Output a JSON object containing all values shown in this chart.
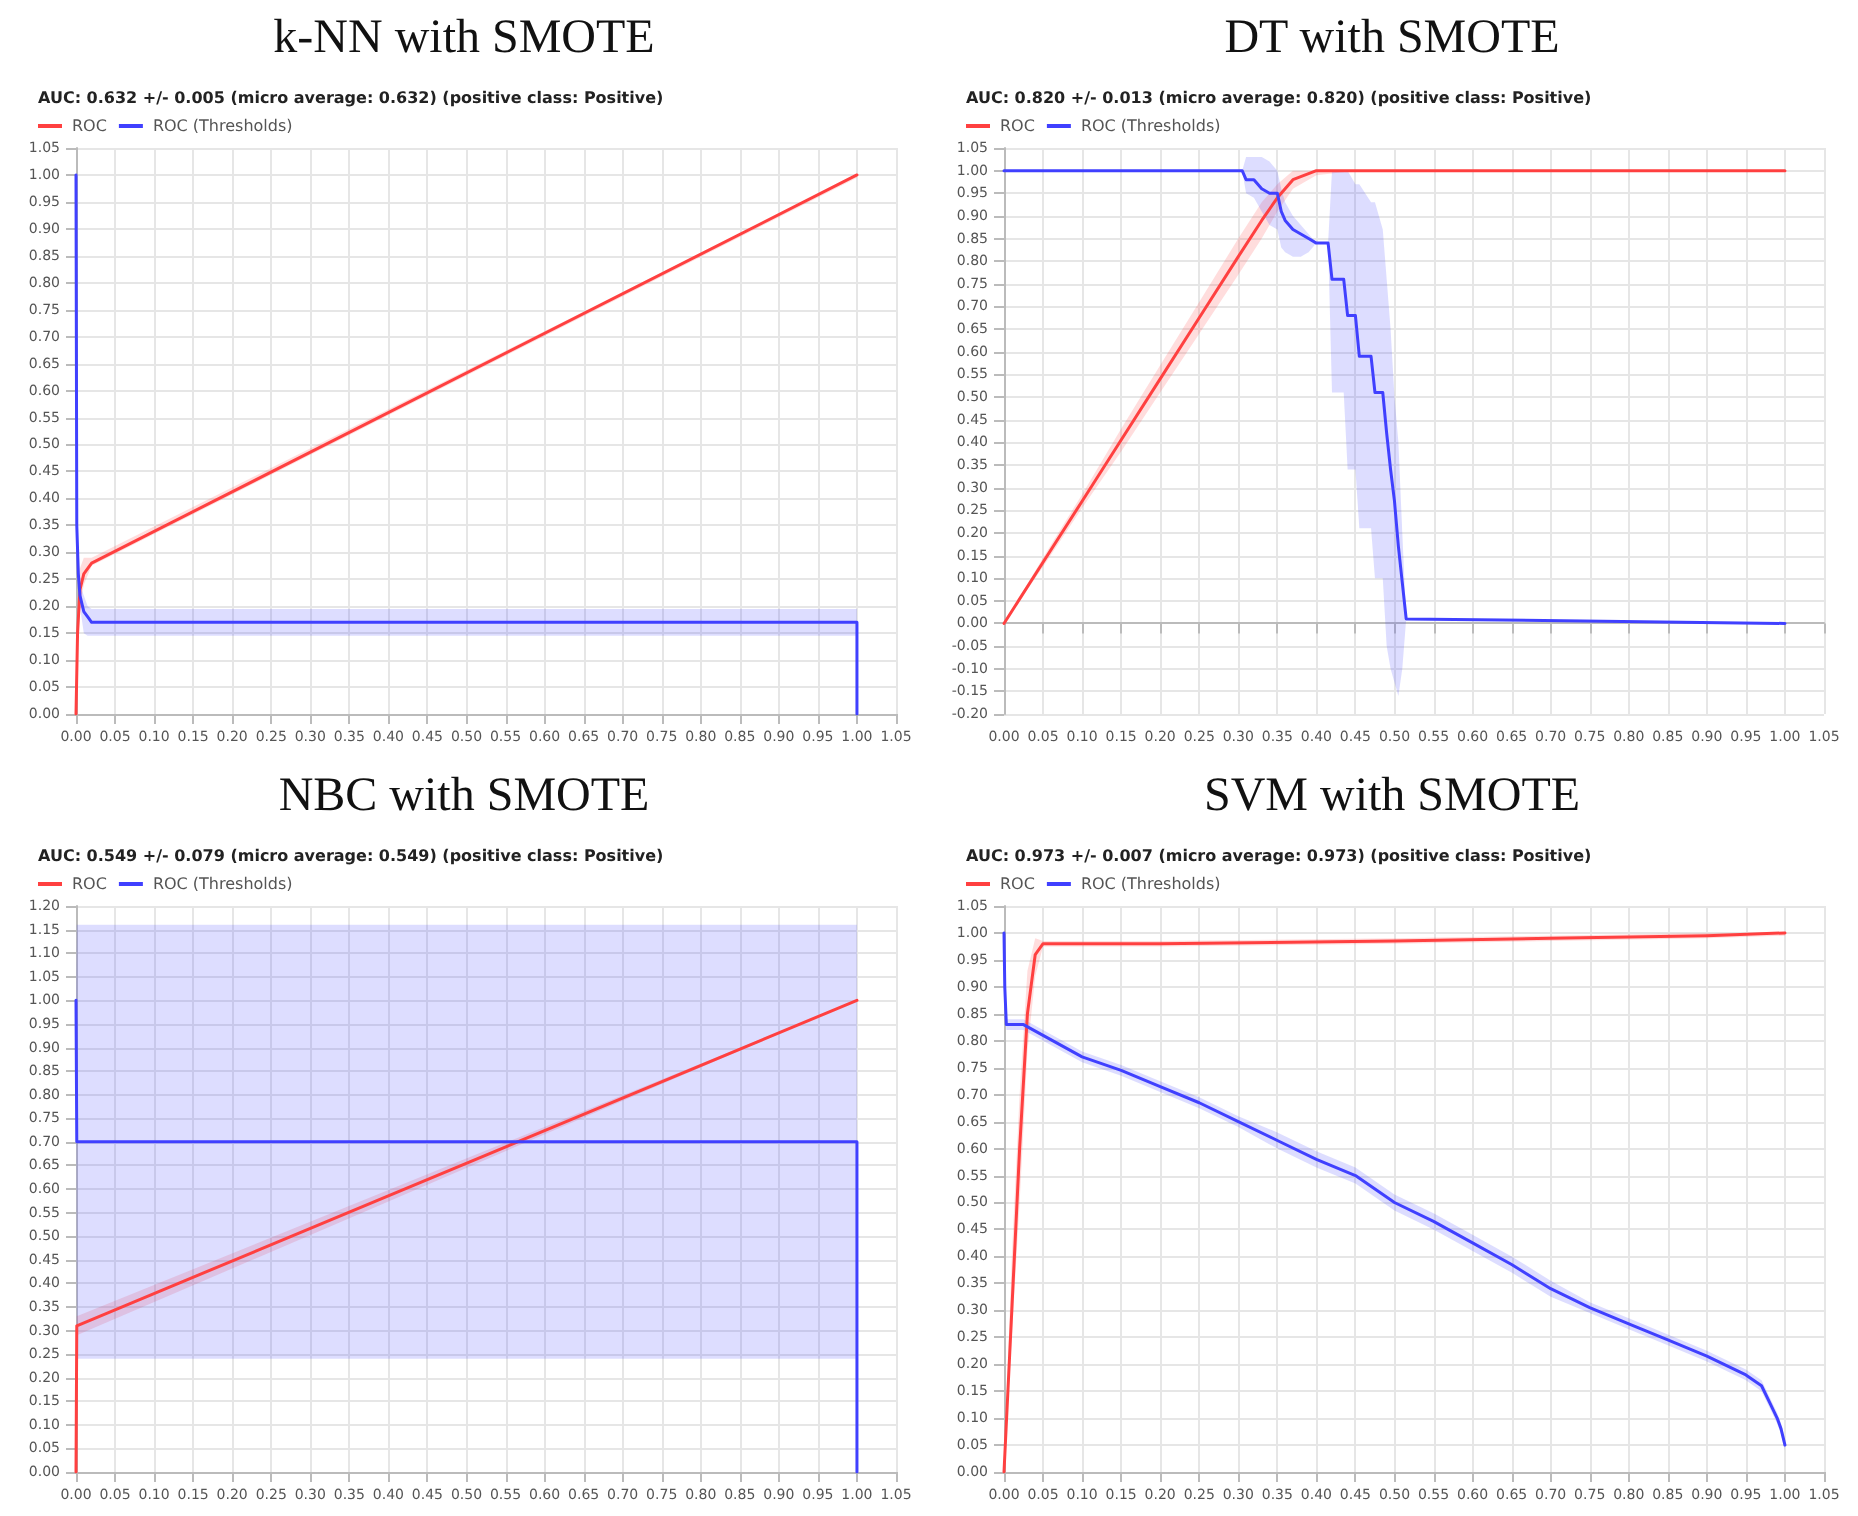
{
  "chart_data": [
    {
      "type": "line",
      "title": "k-NN with SMOTE",
      "subtitle": "AUC: 0.632 +/- 0.005 (micro average: 0.632) (positive class: Positive)",
      "legend": "top left",
      "grid": true,
      "marker": "none",
      "xlim": [
        0,
        1.05
      ],
      "xticks": [
        {
          "value": 0,
          "label": "0.00"
        },
        0.05,
        {
          "value": 0.1,
          "label": "0.10"
        },
        0.15,
        {
          "value": 0.2,
          "label": "0.20"
        },
        0.25,
        {
          "value": 0.3,
          "label": "0.30"
        },
        0.35,
        {
          "value": 0.4,
          "label": "0.40"
        },
        0.45,
        {
          "value": 0.5,
          "label": "0.50"
        },
        0.55,
        {
          "value": 0.6,
          "label": "0.60"
        },
        0.65,
        {
          "value": 0.7,
          "label": "0.70"
        },
        0.75,
        {
          "value": 0.8,
          "label": "0.80"
        },
        0.85,
        {
          "value": 0.9,
          "label": "0.90"
        },
        0.95,
        {
          "value": 1,
          "label": "1.00"
        },
        1.05
      ],
      "ylim": [
        0,
        1.05
      ],
      "yticks": [
        {
          "value": 0,
          "label": "0.00"
        },
        0.05,
        {
          "value": 0.1,
          "label": "0.10"
        },
        0.15,
        {
          "value": 0.2,
          "label": "0.20"
        },
        0.25,
        {
          "value": 0.3,
          "label": "0.30"
        },
        0.35,
        {
          "value": 0.4,
          "label": "0.40"
        },
        0.45,
        {
          "value": 0.5,
          "label": "0.50"
        },
        0.55,
        {
          "value": 0.6,
          "label": "0.60"
        },
        0.65,
        {
          "value": 0.7,
          "label": "0.70"
        },
        0.75,
        {
          "value": 0.8,
          "label": "0.80"
        },
        0.85,
        {
          "value": 0.9,
          "label": "0.90"
        },
        0.95,
        {
          "value": 1,
          "label": "1.00"
        },
        1.05
      ],
      "series": [
        {
          "name": "ROC",
          "color": "#ff4040",
          "x": [
            0,
            0.002,
            0.005,
            0.01,
            0.02,
            1.0
          ],
          "values": [
            0,
            0.15,
            0.23,
            0.26,
            0.28,
            1.0
          ],
          "lower": [
            0,
            0.12,
            0.2,
            0.24,
            0.275,
            0.995
          ],
          "upper": [
            0,
            0.18,
            0.27,
            0.29,
            0.29,
            1.0
          ]
        },
        {
          "name": "ROC (Thresholds)",
          "color": "#4040ff",
          "x": [
            0,
            0.001,
            0.003,
            0.005,
            0.01,
            0.015,
            0.02,
            0.025,
            1.0,
            1.0
          ],
          "values": [
            1.0,
            0.35,
            0.26,
            0.22,
            0.19,
            0.18,
            0.17,
            0.17,
            0.17,
            0
          ],
          "lower": [
            null,
            null,
            null,
            0.2,
            0.15,
            0.145,
            0.145,
            0.145,
            0.145,
            null
          ],
          "upper": [
            null,
            null,
            null,
            0.24,
            0.22,
            0.2,
            0.195,
            0.195,
            0.195,
            null
          ]
        }
      ]
    },
    {
      "type": "line",
      "title": "DT with SMOTE",
      "subtitle": "AUC: 0.820 +/- 0.013 (micro average: 0.820) (positive class: Positive)",
      "legend": "top left",
      "grid": true,
      "marker": "none",
      "xlim": [
        0,
        1.05
      ],
      "xticks": [
        {
          "value": 0,
          "label": "0.00"
        },
        0.05,
        {
          "value": 0.1,
          "label": "0.10"
        },
        0.15,
        {
          "value": 0.2,
          "label": "0.20"
        },
        0.25,
        {
          "value": 0.3,
          "label": "0.30"
        },
        0.35,
        {
          "value": 0.4,
          "label": "0.40"
        },
        0.45,
        {
          "value": 0.5,
          "label": "0.50"
        },
        0.55,
        {
          "value": 0.6,
          "label": "0.60"
        },
        0.65,
        {
          "value": 0.7,
          "label": "0.70"
        },
        0.75,
        {
          "value": 0.8,
          "label": "0.80"
        },
        0.85,
        {
          "value": 0.9,
          "label": "0.90"
        },
        0.95,
        {
          "value": 1,
          "label": "1.00"
        },
        1.05
      ],
      "ylim": [
        -0.2,
        1.05
      ],
      "yticks": [
        {
          "value": -0.2,
          "label": "-0.20"
        },
        -0.15,
        {
          "value": -0.1,
          "label": "-0.10"
        },
        -0.05,
        {
          "value": 0,
          "label": "0.00"
        },
        0.05,
        {
          "value": 0.1,
          "label": "0.10"
        },
        0.15,
        {
          "value": 0.2,
          "label": "0.20"
        },
        0.25,
        {
          "value": 0.3,
          "label": "0.30"
        },
        0.35,
        {
          "value": 0.4,
          "label": "0.40"
        },
        0.45,
        {
          "value": 0.5,
          "label": "0.50"
        },
        0.55,
        {
          "value": 0.6,
          "label": "0.60"
        },
        0.65,
        {
          "value": 0.7,
          "label": "0.70"
        },
        0.75,
        {
          "value": 0.8,
          "label": "0.80"
        },
        0.85,
        {
          "value": 0.9,
          "label": "0.90"
        },
        0.95,
        {
          "value": 1,
          "label": "1.00"
        },
        1.05
      ],
      "series": [
        {
          "name": "ROC",
          "color": "#ff4040",
          "x": [
            0,
            0.05,
            0.1,
            0.15,
            0.2,
            0.25,
            0.3,
            0.33,
            0.35,
            0.37,
            0.4,
            0.45,
            1.0
          ],
          "values": [
            0,
            0.135,
            0.27,
            0.405,
            0.54,
            0.675,
            0.81,
            0.89,
            0.94,
            0.98,
            1.0,
            1.0,
            1.0
          ],
          "lower": [
            0,
            0.125,
            0.255,
            0.38,
            0.51,
            0.64,
            0.77,
            0.85,
            0.91,
            0.96,
            0.99,
            1.0,
            1.0
          ],
          "upper": [
            0,
            0.145,
            0.285,
            0.43,
            0.57,
            0.71,
            0.85,
            0.93,
            0.97,
            1.0,
            1.0,
            1.0,
            1.0
          ]
        },
        {
          "name": "ROC (Thresholds)",
          "color": "#4040ff",
          "x": [
            0,
            0.305,
            0.31,
            0.32,
            0.33,
            0.34,
            0.35,
            0.355,
            0.36,
            0.37,
            0.38,
            0.39,
            0.4,
            0.415,
            0.42,
            0.435,
            0.44,
            0.45,
            0.455,
            0.47,
            0.475,
            0.485,
            0.49,
            0.495,
            0.5,
            0.505,
            0.51,
            0.515,
            1.0
          ],
          "values": [
            1.0,
            1.0,
            0.98,
            0.98,
            0.96,
            0.95,
            0.95,
            0.91,
            0.89,
            0.87,
            0.86,
            0.85,
            0.84,
            0.84,
            0.76,
            0.76,
            0.68,
            0.68,
            0.59,
            0.59,
            0.51,
            0.51,
            0.42,
            0.34,
            0.27,
            0.17,
            0.09,
            0.01,
            0.0
          ],
          "lower": [
            1.0,
            1.0,
            0.95,
            0.94,
            0.91,
            0.88,
            0.87,
            0.83,
            0.82,
            0.81,
            0.81,
            0.82,
            0.84,
            0.84,
            0.51,
            0.51,
            0.34,
            0.34,
            0.21,
            0.21,
            0.1,
            0.1,
            -0.05,
            -0.1,
            -0.13,
            -0.16,
            -0.1,
            0.01,
            0.0
          ],
          "upper": [
            1.0,
            1.0,
            1.03,
            1.03,
            1.03,
            1.02,
            1.0,
            0.96,
            0.93,
            0.9,
            0.88,
            0.86,
            0.84,
            0.84,
            1.0,
            1.0,
            1.0,
            0.97,
            0.97,
            0.93,
            0.93,
            0.87,
            0.76,
            0.65,
            0.5,
            0.4,
            0.2,
            0.01,
            0.0
          ]
        }
      ]
    },
    {
      "type": "line",
      "title": "NBC with SMOTE",
      "subtitle": "AUC: 0.549 +/- 0.079 (micro average: 0.549) (positive class: Positive)",
      "legend": "top left",
      "grid": true,
      "marker": "none",
      "xlim": [
        0,
        1.05
      ],
      "xticks": [
        {
          "value": 0,
          "label": "0.00"
        },
        0.05,
        {
          "value": 0.1,
          "label": "0.10"
        },
        0.15,
        {
          "value": 0.2,
          "label": "0.20"
        },
        0.25,
        {
          "value": 0.3,
          "label": "0.30"
        },
        0.35,
        {
          "value": 0.4,
          "label": "0.40"
        },
        0.45,
        {
          "value": 0.5,
          "label": "0.50"
        },
        0.55,
        {
          "value": 0.6,
          "label": "0.60"
        },
        0.65,
        {
          "value": 0.7,
          "label": "0.70"
        },
        0.75,
        {
          "value": 0.8,
          "label": "0.80"
        },
        0.85,
        {
          "value": 0.9,
          "label": "0.90"
        },
        0.95,
        {
          "value": 1,
          "label": "1.00"
        },
        1.05
      ],
      "ylim": [
        0,
        1.2
      ],
      "yticks": [
        {
          "value": 0,
          "label": "0.00"
        },
        0.05,
        {
          "value": 0.1,
          "label": "0.10"
        },
        0.15,
        {
          "value": 0.2,
          "label": "0.20"
        },
        0.25,
        {
          "value": 0.3,
          "label": "0.30"
        },
        0.35,
        {
          "value": 0.4,
          "label": "0.40"
        },
        0.45,
        {
          "value": 0.5,
          "label": "0.50"
        },
        0.55,
        {
          "value": 0.6,
          "label": "0.60"
        },
        0.65,
        {
          "value": 0.7,
          "label": "0.70"
        },
        0.75,
        {
          "value": 0.8,
          "label": "0.80"
        },
        0.85,
        {
          "value": 0.9,
          "label": "0.90"
        },
        0.95,
        {
          "value": 1,
          "label": "1.00"
        },
        1.05,
        {
          "value": 1.1,
          "label": "1.10"
        },
        1.15,
        {
          "value": 1.2,
          "label": "1.20"
        }
      ],
      "series": [
        {
          "name": "ROC",
          "color": "#ff4040",
          "x": [
            0,
            0.001,
            1.0
          ],
          "values": [
            0,
            0.31,
            1.0
          ],
          "lower": [
            0,
            0.29,
            1.0
          ],
          "upper": [
            0,
            0.33,
            1.0
          ]
        },
        {
          "name": "ROC (Thresholds)",
          "color": "#4040ff",
          "x": [
            0,
            0.001,
            1.0,
            1.0
          ],
          "values": [
            1.0,
            0.7,
            0.7,
            0
          ],
          "lower": [
            1.0,
            0.24,
            0.24,
            0
          ],
          "upper": [
            1.0,
            1.16,
            1.16,
            0
          ]
        }
      ]
    },
    {
      "type": "line",
      "title": "SVM with SMOTE",
      "subtitle": "AUC: 0.973 +/- 0.007 (micro average: 0.973) (positive class: Positive)",
      "legend": "top left",
      "grid": true,
      "marker": "none",
      "xlim": [
        0,
        1.05
      ],
      "xticks": [
        {
          "value": 0,
          "label": "0.00"
        },
        0.05,
        {
          "value": 0.1,
          "label": "0.10"
        },
        0.15,
        {
          "value": 0.2,
          "label": "0.20"
        },
        0.25,
        {
          "value": 0.3,
          "label": "0.30"
        },
        0.35,
        {
          "value": 0.4,
          "label": "0.40"
        },
        0.45,
        {
          "value": 0.5,
          "label": "0.50"
        },
        0.55,
        {
          "value": 0.6,
          "label": "0.60"
        },
        0.65,
        {
          "value": 0.7,
          "label": "0.70"
        },
        0.75,
        {
          "value": 0.8,
          "label": "0.80"
        },
        0.85,
        {
          "value": 0.9,
          "label": "0.90"
        },
        0.95,
        {
          "value": 1,
          "label": "1.00"
        },
        1.05
      ],
      "ylim": [
        0,
        1.05
      ],
      "yticks": [
        {
          "value": 0,
          "label": "0.00"
        },
        0.05,
        {
          "value": 0.1,
          "label": "0.10"
        },
        0.15,
        {
          "value": 0.2,
          "label": "0.20"
        },
        0.25,
        {
          "value": 0.3,
          "label": "0.30"
        },
        0.35,
        {
          "value": 0.4,
          "label": "0.40"
        },
        0.45,
        {
          "value": 0.5,
          "label": "0.50"
        },
        0.55,
        {
          "value": 0.6,
          "label": "0.60"
        },
        0.65,
        {
          "value": 0.7,
          "label": "0.70"
        },
        0.75,
        {
          "value": 0.8,
          "label": "0.80"
        },
        0.85,
        {
          "value": 0.9,
          "label": "0.90"
        },
        0.95,
        {
          "value": 1,
          "label": "1.00"
        },
        1.05
      ],
      "series": [
        {
          "name": "ROC",
          "color": "#ff4040",
          "x": [
            0,
            0.01,
            0.02,
            0.03,
            0.04,
            0.05,
            0.2,
            0.5,
            0.7,
            0.9,
            1.0
          ],
          "values": [
            0,
            0.3,
            0.6,
            0.85,
            0.96,
            0.98,
            0.98,
            0.985,
            0.99,
            0.995,
            1.0
          ],
          "lower": [
            0,
            0.25,
            0.5,
            0.78,
            0.92,
            0.975,
            0.975,
            0.98,
            0.985,
            0.99,
            0.995
          ],
          "upper": [
            0,
            0.4,
            0.7,
            0.93,
            0.99,
            0.985,
            0.985,
            0.99,
            0.995,
            1.0,
            1.0
          ]
        },
        {
          "name": "ROC (Thresholds)",
          "color": "#4040ff",
          "x": [
            0,
            0.001,
            0.003,
            0.025,
            0.05,
            0.1,
            0.15,
            0.2,
            0.25,
            0.3,
            0.35,
            0.4,
            0.45,
            0.5,
            0.55,
            0.6,
            0.65,
            0.7,
            0.75,
            0.8,
            0.85,
            0.9,
            0.95,
            0.97,
            0.98,
            0.99,
            0.995,
            1.0
          ],
          "values": [
            1.0,
            0.9,
            0.83,
            0.83,
            0.81,
            0.77,
            0.745,
            0.715,
            0.685,
            0.65,
            0.615,
            0.58,
            0.55,
            0.5,
            0.465,
            0.425,
            0.385,
            0.34,
            0.305,
            0.275,
            0.245,
            0.215,
            0.18,
            0.16,
            0.13,
            0.1,
            0.08,
            0.05
          ],
          "lower": [
            1.0,
            0.88,
            0.82,
            0.82,
            0.8,
            0.76,
            0.735,
            0.705,
            0.675,
            0.64,
            0.6,
            0.565,
            0.535,
            0.485,
            0.45,
            0.41,
            0.37,
            0.325,
            0.295,
            0.265,
            0.235,
            0.205,
            0.17,
            0.15,
            0.12,
            0.09,
            0.07,
            0.04
          ],
          "upper": [
            1.0,
            0.92,
            0.84,
            0.84,
            0.82,
            0.78,
            0.755,
            0.725,
            0.695,
            0.66,
            0.63,
            0.595,
            0.565,
            0.515,
            0.48,
            0.44,
            0.4,
            0.355,
            0.315,
            0.285,
            0.255,
            0.225,
            0.19,
            0.17,
            0.14,
            0.11,
            0.09,
            0.06
          ]
        }
      ]
    }
  ]
}
